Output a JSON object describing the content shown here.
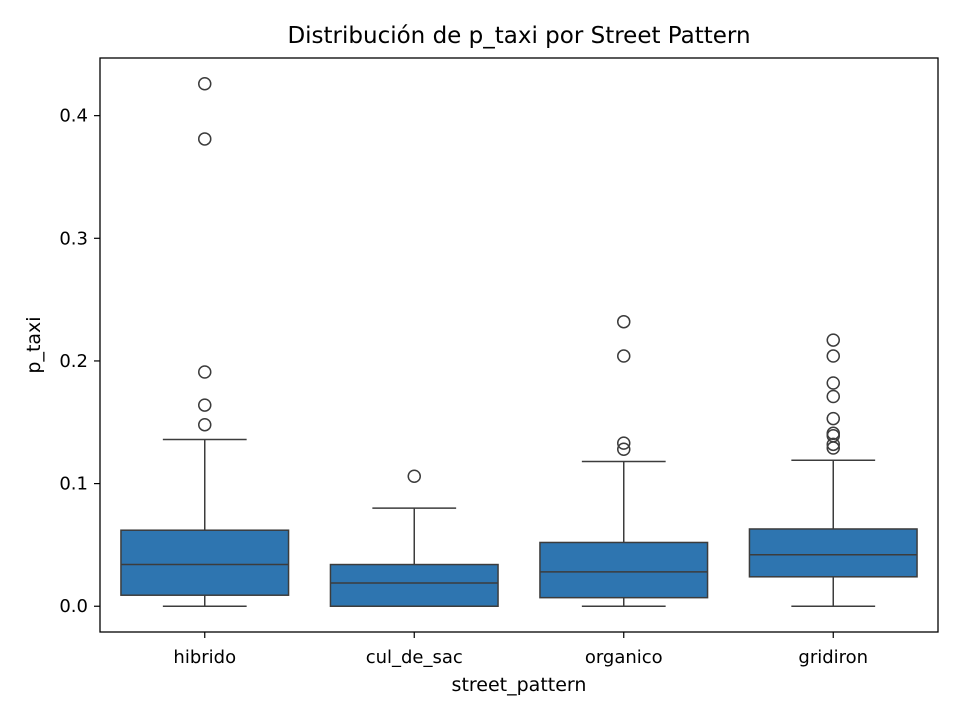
{
  "chart_data": {
    "type": "box",
    "title": "Distribución de p_taxi por Street Pattern",
    "xlabel": "street_pattern",
    "ylabel": "p_taxi",
    "ylim": [
      -0.021,
      0.447
    ],
    "yticks": [
      0.0,
      0.1,
      0.2,
      0.3,
      0.4
    ],
    "ytick_labels": [
      "0.0",
      "0.1",
      "0.2",
      "0.3",
      "0.4"
    ],
    "categories": [
      "hibrido",
      "cul_de_sac",
      "organico",
      "gridiron"
    ],
    "box_color": "#2e75b0",
    "line_color": "#3c3c3c",
    "grid": false,
    "boxes": [
      {
        "category": "hibrido",
        "whisker_low": 0.0,
        "q1": 0.009,
        "median": 0.034,
        "q3": 0.062,
        "whisker_high": 0.136,
        "outliers": [
          0.426,
          0.381,
          0.191,
          0.164,
          0.148
        ]
      },
      {
        "category": "cul_de_sac",
        "whisker_low": 0.0,
        "q1": 0.0,
        "median": 0.019,
        "q3": 0.034,
        "whisker_high": 0.08,
        "outliers": [
          0.106
        ]
      },
      {
        "category": "organico",
        "whisker_low": 0.0,
        "q1": 0.007,
        "median": 0.028,
        "q3": 0.052,
        "whisker_high": 0.118,
        "outliers": [
          0.232,
          0.204,
          0.133,
          0.128
        ]
      },
      {
        "category": "gridiron",
        "whisker_low": 0.0,
        "q1": 0.024,
        "median": 0.042,
        "q3": 0.063,
        "whisker_high": 0.119,
        "outliers": [
          0.217,
          0.204,
          0.182,
          0.171,
          0.153,
          0.141,
          0.139,
          0.132,
          0.129
        ]
      }
    ]
  }
}
